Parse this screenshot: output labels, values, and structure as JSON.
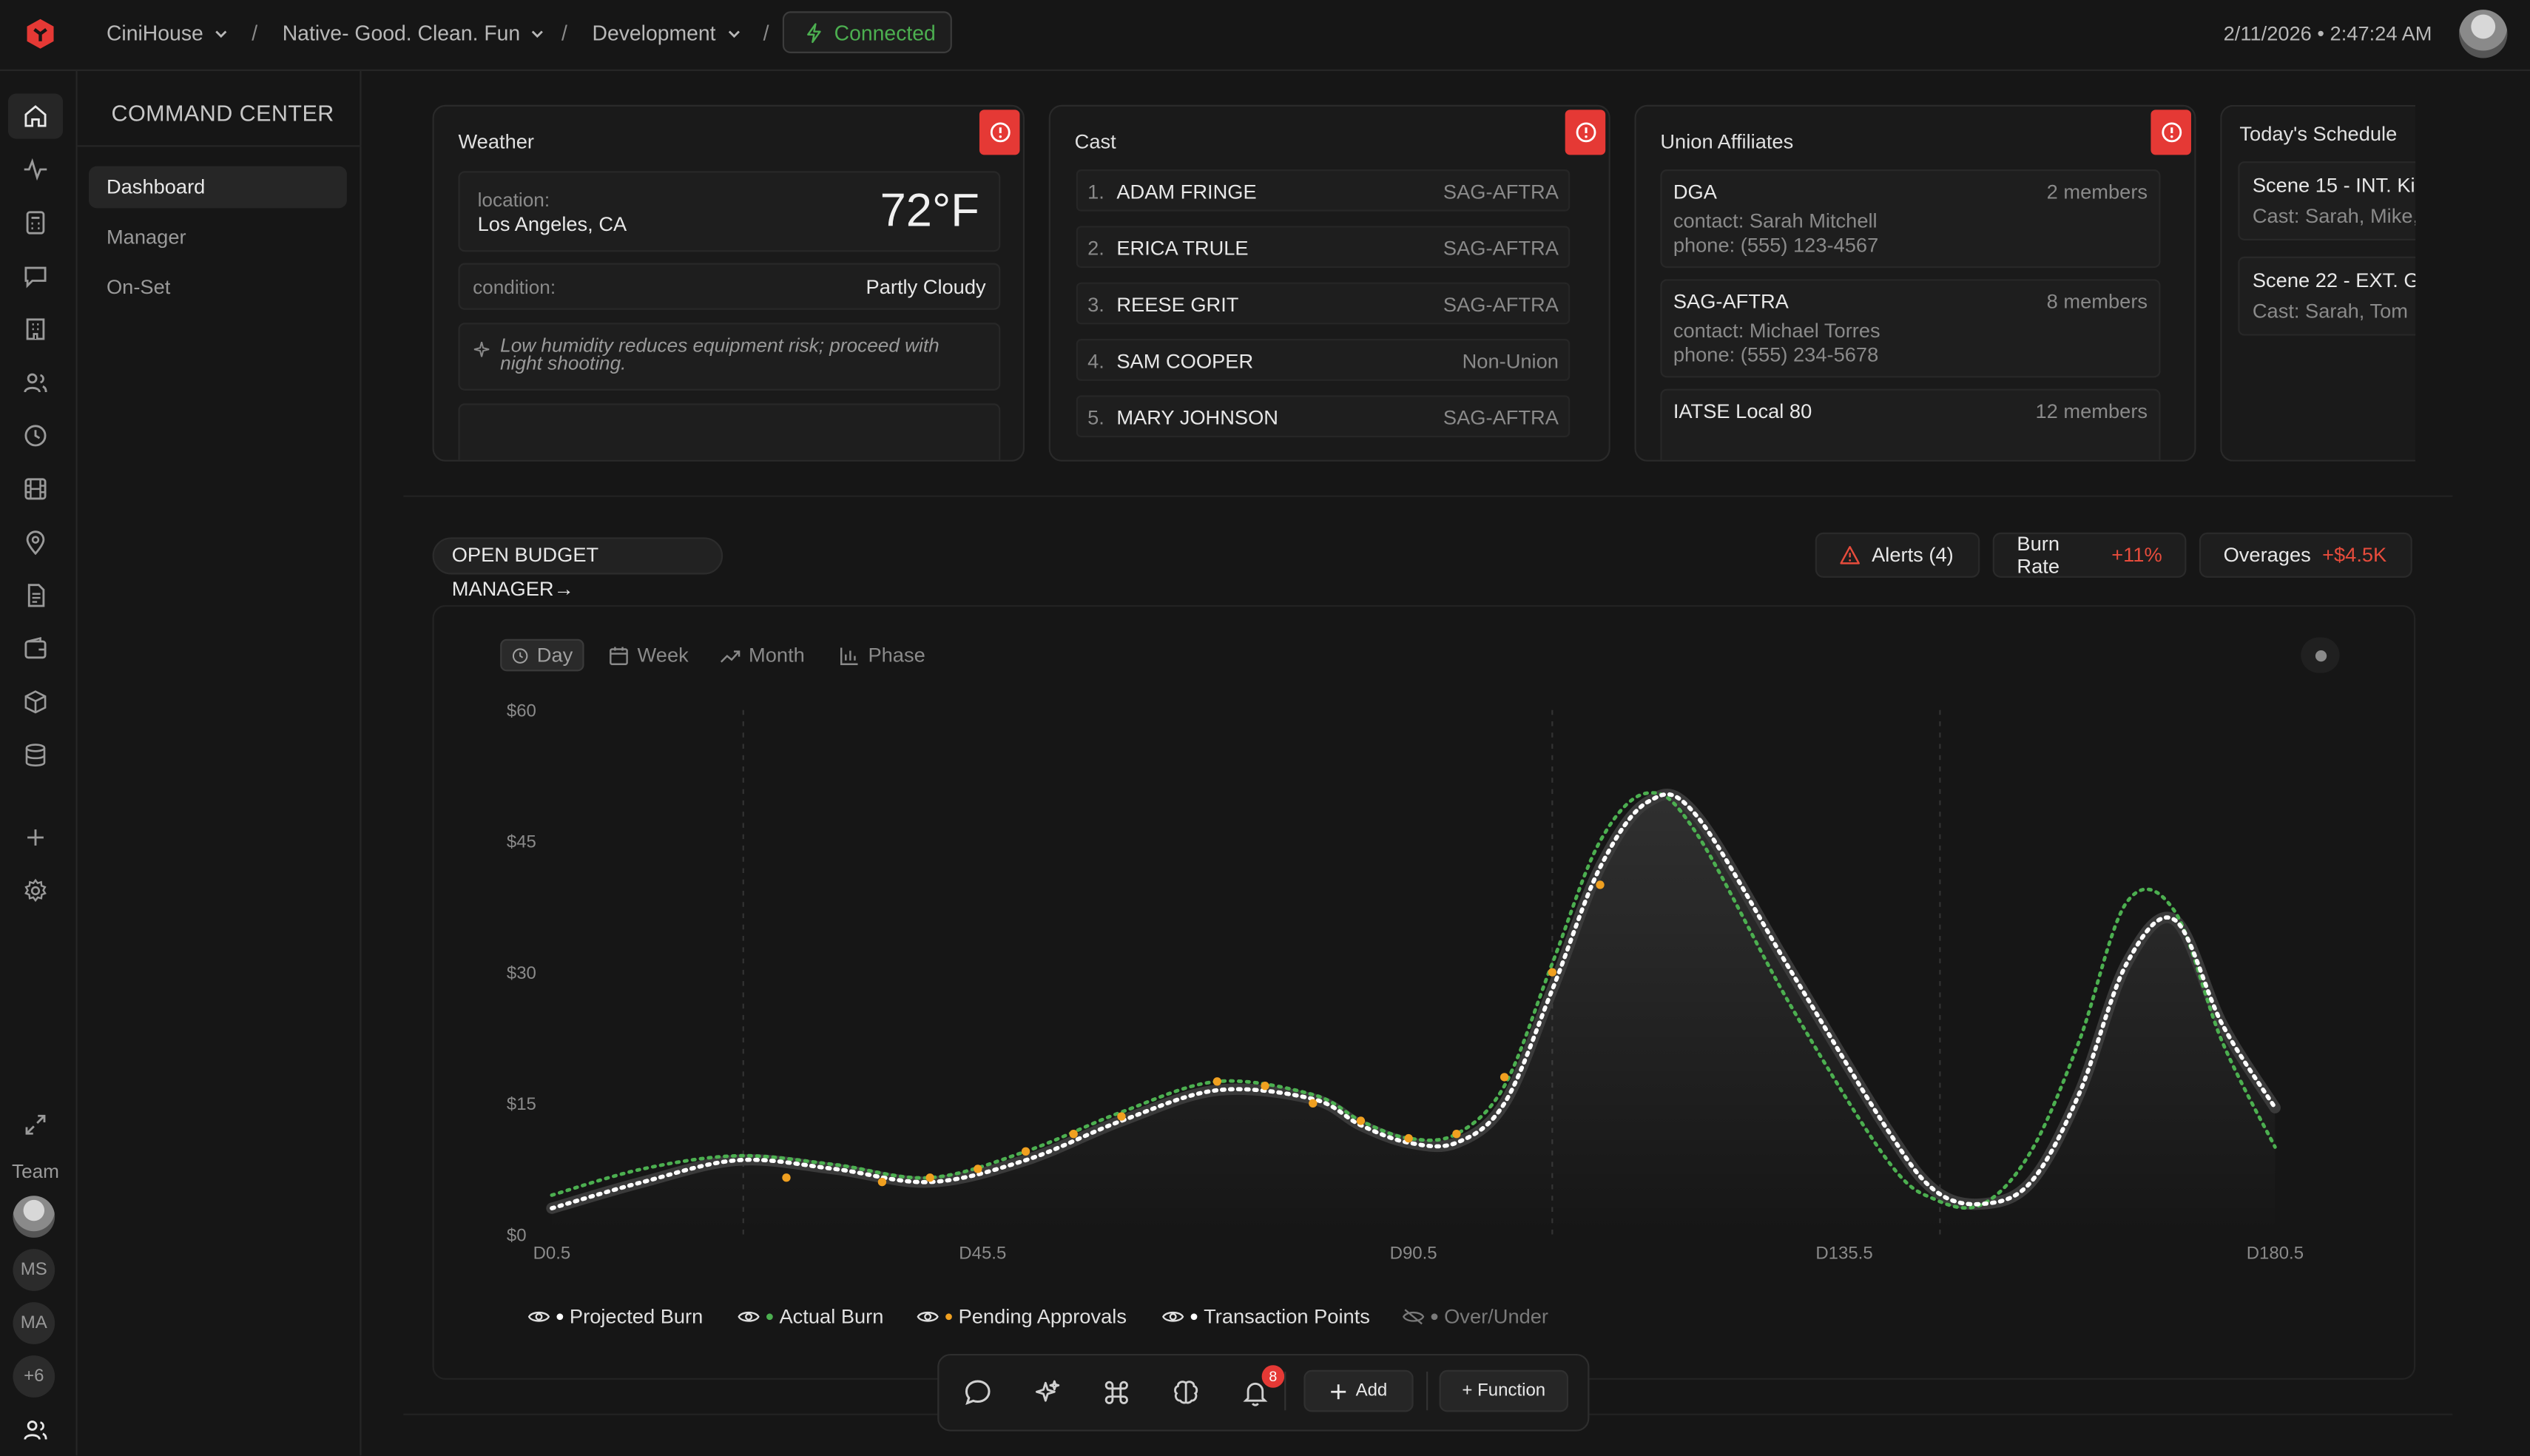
{
  "header": {
    "org": "CiniHouse",
    "project": "Native- Good. Clean. Fun",
    "phase": "Development",
    "separator": "/",
    "status": "Connected",
    "datetime": "2/11/2026 • 2:47:24 AM"
  },
  "sidebar": {
    "title": "COMMAND CENTER",
    "items": [
      {
        "label": "Dashboard",
        "active": true
      },
      {
        "label": "Manager",
        "active": false
      },
      {
        "label": "On-Set",
        "active": false
      }
    ]
  },
  "rail": {
    "team_label": "Team",
    "avatars": [
      "MS",
      "MA",
      "+6"
    ]
  },
  "weather": {
    "title": "Weather",
    "location_label": "location:",
    "location_value": "Los Angeles, CA",
    "temperature": "72°F",
    "condition_label": "condition:",
    "condition_value": "Partly Cloudy",
    "note": "Low humidity reduces equipment risk; proceed with night shooting."
  },
  "cast": {
    "title": "Cast",
    "rows": [
      {
        "num": "1.",
        "name": "ADAM FRINGE",
        "union": "SAG-AFTRA"
      },
      {
        "num": "2.",
        "name": "ERICA TRULE",
        "union": "SAG-AFTRA"
      },
      {
        "num": "3.",
        "name": "REESE GRIT",
        "union": "SAG-AFTRA"
      },
      {
        "num": "4.",
        "name": "SAM COOPER",
        "union": "Non-Union"
      },
      {
        "num": "5.",
        "name": "MARY JOHNSON",
        "union": "SAG-AFTRA"
      }
    ]
  },
  "union": {
    "title": "Union Affiliates",
    "items": [
      {
        "name": "DGA",
        "members": "2 members",
        "contact": "contact: Sarah Mitchell",
        "phone": "phone: (555) 123-4567"
      },
      {
        "name": "SAG-AFTRA",
        "members": "8 members",
        "contact": "contact: Michael Torres",
        "phone": "phone: (555) 234-5678"
      },
      {
        "name": "IATSE Local 80",
        "members": "12 members"
      }
    ]
  },
  "schedule": {
    "title": "Today's Schedule",
    "items": [
      {
        "scene": "Scene 15 - INT. Ki",
        "cast": "Cast: Sarah, Mike,"
      },
      {
        "scene": "Scene 22 - EXT. G",
        "cast": "Cast: Sarah, Tom"
      }
    ]
  },
  "budget": {
    "open_label": "OPEN BUDGET MANAGER→",
    "alerts_label": "Alerts (4)",
    "burn_label": "Burn Rate",
    "burn_value": "+11%",
    "overages_label": "Overages",
    "overages_value": "+$4.5K"
  },
  "ranges": [
    "Day",
    "Week",
    "Month",
    "Phase"
  ],
  "legend": [
    {
      "label": "Projected Burn",
      "color": "#ffffff",
      "on": true
    },
    {
      "label": "Actual Burn",
      "color": "#4caf50",
      "on": true
    },
    {
      "label": "Pending Approvals",
      "color": "#f0a020",
      "on": true
    },
    {
      "label": "Transaction Points",
      "color": "#ffffff",
      "on": true
    },
    {
      "label": "Over/Under",
      "color": "#7a7a7a",
      "on": false
    }
  ],
  "toolbar": {
    "badge": "8",
    "add_label": "Add",
    "function_label": "+ Function"
  },
  "chart_data": {
    "type": "line",
    "y_ticks": [
      "$0",
      "$15",
      "$30",
      "$45",
      "$60"
    ],
    "x_ticks": [
      "D0.5",
      "D45.5",
      "D90.5",
      "D135.5",
      "D180.5"
    ],
    "ylim": [
      0,
      60
    ],
    "xlim": [
      0.5,
      180.5
    ],
    "grid_x": [
      20.5,
      105,
      145.5
    ],
    "series": [
      {
        "name": "Projected Burn",
        "color": "#ffffff",
        "x": [
          0.5,
          10,
          20,
          30,
          40,
          50,
          60,
          70,
          80,
          85,
          90,
          95,
          100,
          105,
          110,
          115,
          120,
          130,
          140,
          145,
          150,
          155,
          160,
          165,
          170,
          175,
          180.5
        ],
        "y": [
          3,
          6,
          8.5,
          7.5,
          6,
          8.5,
          13,
          16.5,
          15.5,
          12.5,
          10.5,
          10.5,
          15,
          28,
          42,
          49.5,
          48,
          30,
          12,
          5,
          3.5,
          6,
          16,
          31,
          36,
          24,
          14.5
        ]
      },
      {
        "name": "Actual Burn",
        "color": "#4caf50",
        "x": [
          0.5,
          10,
          20,
          30,
          40,
          50,
          60,
          70,
          80,
          85,
          90,
          95,
          100,
          105,
          110,
          115,
          120,
          130,
          140,
          145,
          150,
          155,
          160,
          165,
          170,
          175,
          180.5
        ],
        "y": [
          4.5,
          7.5,
          9,
          8,
          6.5,
          9.5,
          14,
          17.5,
          16,
          13,
          11,
          11.5,
          17,
          31,
          45,
          50.5,
          46,
          26,
          8.5,
          4,
          3.5,
          9.5,
          22,
          38,
          37,
          22,
          10
        ]
      },
      {
        "name": "Pending Approvals",
        "color": "#f0a020",
        "x": [
          25,
          35,
          40,
          45,
          50,
          55,
          60,
          70,
          75,
          80,
          85,
          90,
          95,
          100,
          105,
          110
        ],
        "y": [
          6.5,
          6,
          6.5,
          7.5,
          9.5,
          11.5,
          13.5,
          17.5,
          17,
          15,
          13,
          11,
          11.5,
          18,
          30,
          40
        ]
      }
    ]
  }
}
